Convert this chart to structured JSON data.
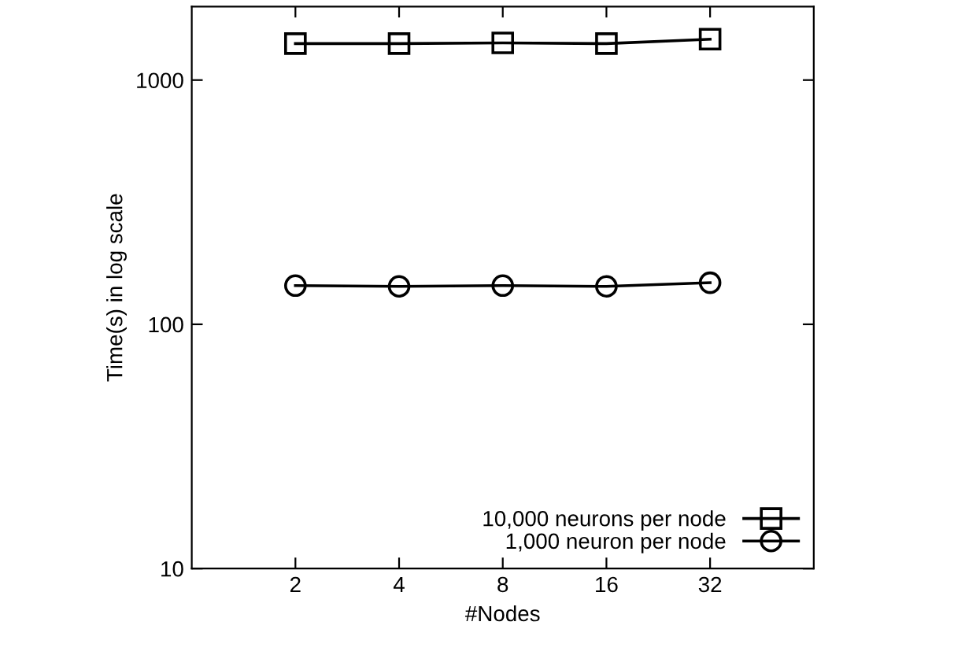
{
  "chart_data": {
    "type": "line",
    "xlabel": "#Nodes",
    "ylabel": "Time(s) in log scale",
    "x": [
      2,
      4,
      8,
      16,
      32
    ],
    "series": [
      {
        "name": "10,000 neurons per node",
        "color": "#000000",
        "marker": "square",
        "values": [
          1410,
          1410,
          1420,
          1410,
          1470
        ]
      },
      {
        "name": "1,000 neuron per node",
        "color": "#000000",
        "marker": "circle",
        "values": [
          144,
          143,
          144,
          143,
          148
        ]
      }
    ],
    "log": "xy",
    "xlim": [
      1,
      64
    ],
    "xticks": [
      2,
      4,
      8,
      16,
      32
    ],
    "ylim": [
      10,
      2000
    ],
    "yticks": [
      10,
      100,
      1000
    ],
    "grid": false,
    "legend": "bottom right",
    "line_style": "solid"
  }
}
